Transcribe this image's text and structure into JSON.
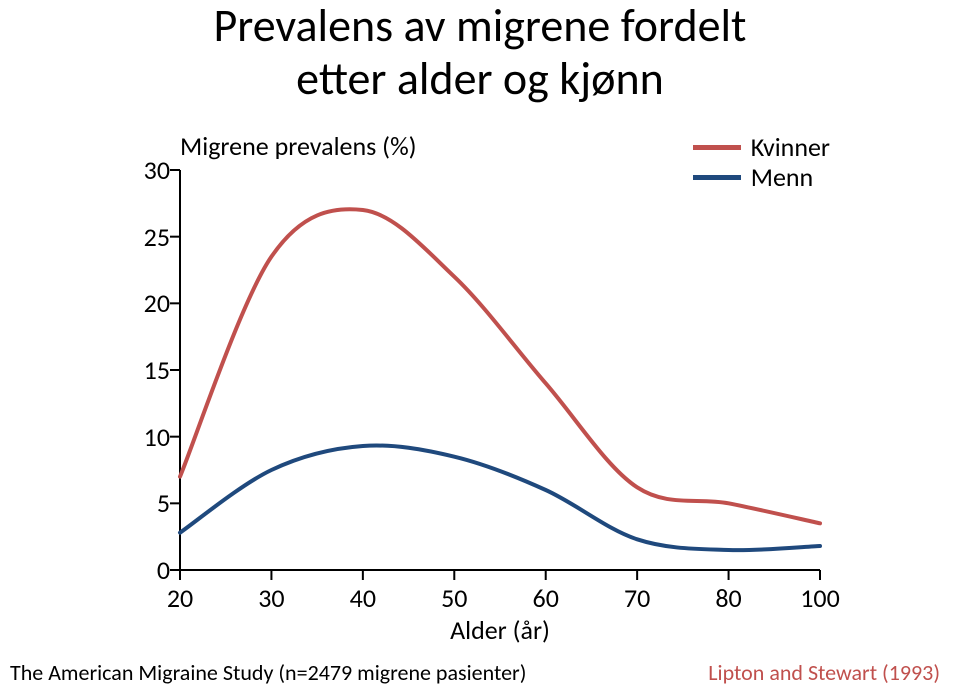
{
  "title_line1": "Prevalens av migrene fordelt",
  "title_line2": "etter alder og kjønn",
  "chart": {
    "type": "line",
    "y_axis_title": "Migrene prevalens (%)",
    "x_axis_title": "Alder (år)",
    "background_color": "#ffffff",
    "axis_color": "#000000",
    "tick_length": 10,
    "line_width": 4,
    "ylim": [
      0,
      30
    ],
    "yticks": [
      0,
      5,
      10,
      15,
      20,
      25,
      30
    ],
    "xticks": [
      20,
      30,
      40,
      50,
      60,
      70,
      80,
      100
    ],
    "xtick_labels": [
      "20",
      "30",
      "40",
      "50",
      "60",
      "70",
      "80",
      "100"
    ],
    "ytick_labels": [
      "0",
      "5",
      "10",
      "15",
      "20",
      "25",
      "30"
    ],
    "series": [
      {
        "name": "Kvinner",
        "color": "#c0504d",
        "points": [
          {
            "x": 20,
            "y": 7.0
          },
          {
            "x": 30,
            "y": 23.5
          },
          {
            "x": 40,
            "y": 27.0
          },
          {
            "x": 50,
            "y": 22.0
          },
          {
            "x": 60,
            "y": 14.0
          },
          {
            "x": 70,
            "y": 6.2
          },
          {
            "x": 80,
            "y": 5.0
          },
          {
            "x": 100,
            "y": 3.5
          }
        ]
      },
      {
        "name": "Menn",
        "color": "#1f497d",
        "points": [
          {
            "x": 20,
            "y": 2.8
          },
          {
            "x": 30,
            "y": 7.5
          },
          {
            "x": 40,
            "y": 9.3
          },
          {
            "x": 50,
            "y": 8.5
          },
          {
            "x": 60,
            "y": 6.0
          },
          {
            "x": 70,
            "y": 2.3
          },
          {
            "x": 80,
            "y": 1.5
          },
          {
            "x": 100,
            "y": 1.8
          }
        ]
      }
    ],
    "legend_labels": [
      "Kvinner",
      "Menn"
    ]
  },
  "footer_left": "The American Migraine Study (n=2479 migrene pasienter)",
  "footer_right": "Lipton and Stewart (1993)",
  "footer_right_color": "#c0504d"
}
